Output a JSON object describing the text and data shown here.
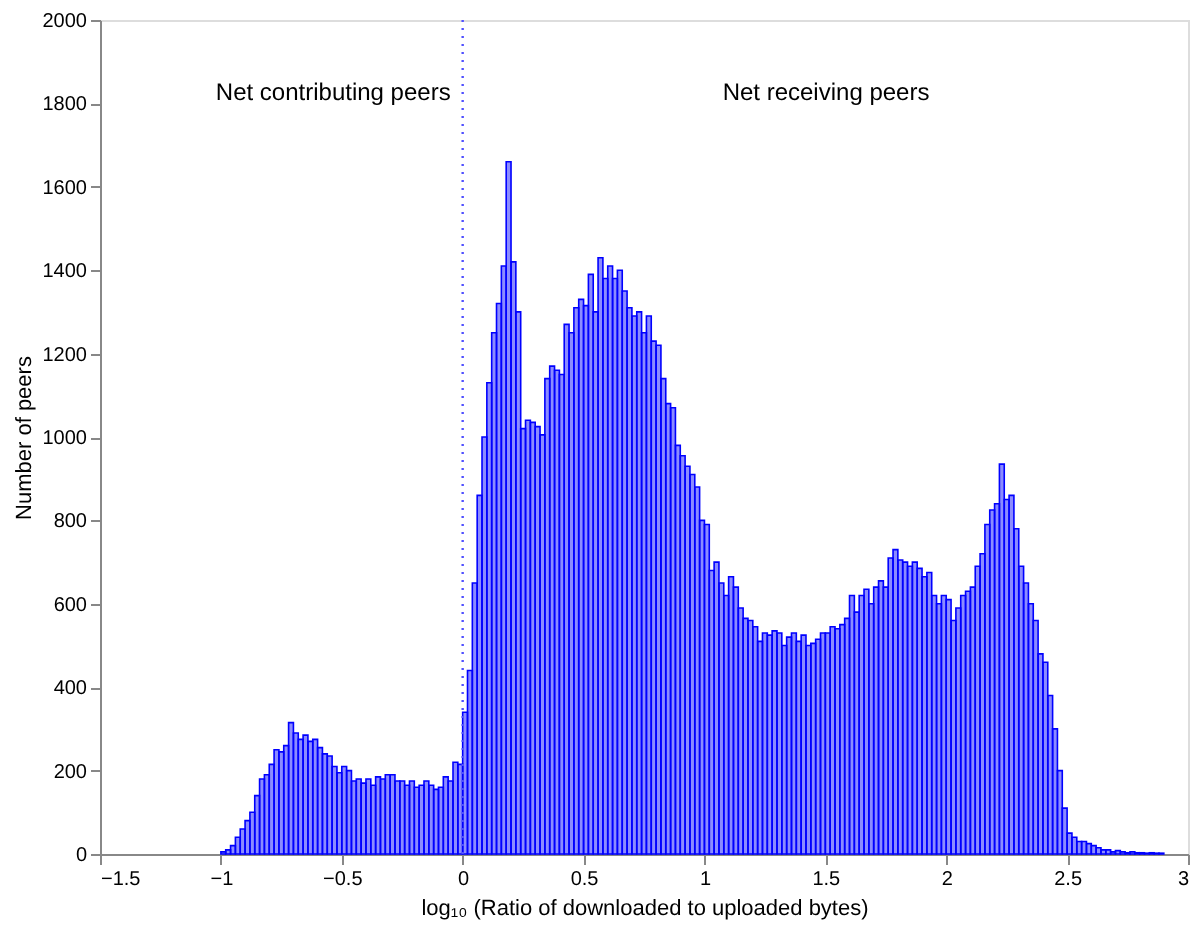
{
  "chart_data": {
    "type": "histogram",
    "xlabel": "log₁₀ (Ratio of downloaded to uploaded bytes)",
    "ylabel": "Number of peers",
    "color": "#0000ff",
    "bins": [
      -1.0,
      -0.98,
      -0.96,
      -0.94,
      -0.92,
      -0.9,
      -0.88,
      -0.86,
      -0.84,
      -0.82,
      -0.8,
      -0.78,
      -0.76,
      -0.74,
      -0.72,
      -0.7,
      -0.68,
      -0.66,
      -0.64,
      -0.62,
      -0.6,
      -0.58,
      -0.56,
      -0.54,
      -0.52,
      -0.5,
      -0.48,
      -0.46,
      -0.44,
      -0.42,
      -0.4,
      -0.38,
      -0.36,
      -0.34,
      -0.32,
      -0.3,
      -0.28,
      -0.26,
      -0.24,
      -0.22,
      -0.2,
      -0.18,
      -0.16,
      -0.14,
      -0.12,
      -0.1,
      -0.08,
      -0.06,
      -0.04,
      -0.02,
      0.0,
      0.02,
      0.04,
      0.06,
      0.08,
      0.1,
      0.12,
      0.14,
      0.16,
      0.18,
      0.2,
      0.22,
      0.24,
      0.26,
      0.28,
      0.3,
      0.32,
      0.34,
      0.36,
      0.38,
      0.4,
      0.42,
      0.44,
      0.46,
      0.48,
      0.5,
      0.52,
      0.54,
      0.56,
      0.58,
      0.6,
      0.62,
      0.64,
      0.66,
      0.68,
      0.7,
      0.72,
      0.74,
      0.76,
      0.78,
      0.8,
      0.82,
      0.84,
      0.86,
      0.88,
      0.9,
      0.92,
      0.94,
      0.96,
      0.98,
      1.0,
      1.02,
      1.04,
      1.06,
      1.08,
      1.1,
      1.12,
      1.14,
      1.16,
      1.18,
      1.2,
      1.22,
      1.24,
      1.26,
      1.28,
      1.3,
      1.32,
      1.34,
      1.36,
      1.38,
      1.4,
      1.42,
      1.44,
      1.46,
      1.48,
      1.5,
      1.52,
      1.54,
      1.56,
      1.58,
      1.6,
      1.62,
      1.64,
      1.66,
      1.68,
      1.7,
      1.72,
      1.74,
      1.76,
      1.78,
      1.8,
      1.82,
      1.84,
      1.86,
      1.88,
      1.9,
      1.92,
      1.94,
      1.96,
      1.98,
      2.0,
      2.02,
      2.04,
      2.06,
      2.08,
      2.1,
      2.12,
      2.14,
      2.16,
      2.18,
      2.2,
      2.22,
      2.24,
      2.26,
      2.28,
      2.3,
      2.32,
      2.34,
      2.36,
      2.38,
      2.4,
      2.42,
      2.44,
      2.46,
      2.48,
      2.5,
      2.52,
      2.54,
      2.56,
      2.58,
      2.6,
      2.62,
      2.64,
      2.66,
      2.68,
      2.7,
      2.72,
      2.74,
      2.76,
      2.78,
      2.8,
      2.82,
      2.84,
      2.86,
      2.88,
      2.9
    ],
    "values": [
      5,
      10,
      20,
      40,
      60,
      80,
      100,
      140,
      180,
      190,
      215,
      250,
      245,
      260,
      315,
      290,
      275,
      285,
      270,
      275,
      255,
      240,
      235,
      210,
      195,
      210,
      200,
      175,
      180,
      170,
      180,
      165,
      185,
      180,
      190,
      190,
      175,
      175,
      165,
      175,
      160,
      165,
      175,
      165,
      155,
      160,
      185,
      175,
      220,
      215,
      340,
      440,
      650,
      860,
      1000,
      1130,
      1250,
      1320,
      1410,
      1660,
      1420,
      1300,
      1020,
      1040,
      1035,
      1025,
      1005,
      1140,
      1170,
      1160,
      1150,
      1270,
      1250,
      1310,
      1330,
      1315,
      1390,
      1300,
      1430,
      1380,
      1410,
      1380,
      1400,
      1350,
      1310,
      1290,
      1300,
      1250,
      1290,
      1230,
      1220,
      1140,
      1080,
      1070,
      980,
      955,
      930,
      910,
      880,
      800,
      790,
      680,
      700,
      650,
      620,
      665,
      640,
      590,
      565,
      560,
      545,
      510,
      530,
      525,
      535,
      530,
      500,
      520,
      530,
      510,
      525,
      500,
      505,
      515,
      530,
      530,
      545,
      540,
      550,
      565,
      620,
      580,
      620,
      635,
      600,
      640,
      655,
      640,
      710,
      730,
      705,
      700,
      690,
      700,
      685,
      665,
      675,
      620,
      600,
      620,
      610,
      560,
      590,
      620,
      630,
      640,
      690,
      720,
      790,
      825,
      840,
      935,
      850,
      860,
      780,
      690,
      650,
      600,
      560,
      480,
      460,
      380,
      300,
      200,
      110,
      50,
      40,
      30,
      30,
      25,
      20,
      15,
      10,
      10,
      5,
      8,
      5,
      3,
      5,
      3,
      3,
      2,
      3,
      2,
      2
    ],
    "xlim": [
      -1.5,
      3
    ],
    "xticks": [
      -1.5,
      -1,
      -0.5,
      0,
      0.5,
      1,
      1.5,
      2,
      2.5,
      3
    ],
    "ylim": [
      0,
      2000
    ],
    "yticks": [
      0,
      200,
      400,
      600,
      800,
      1000,
      1200,
      1400,
      1600,
      1800,
      2000
    ],
    "ref_lines": [
      {
        "axis": "x",
        "value": 0,
        "color": "#5050ff",
        "line_style": "dotted"
      }
    ],
    "annotations": [
      "Net contributing peers",
      "Net receiving peers"
    ],
    "grid": false,
    "legend": false
  }
}
